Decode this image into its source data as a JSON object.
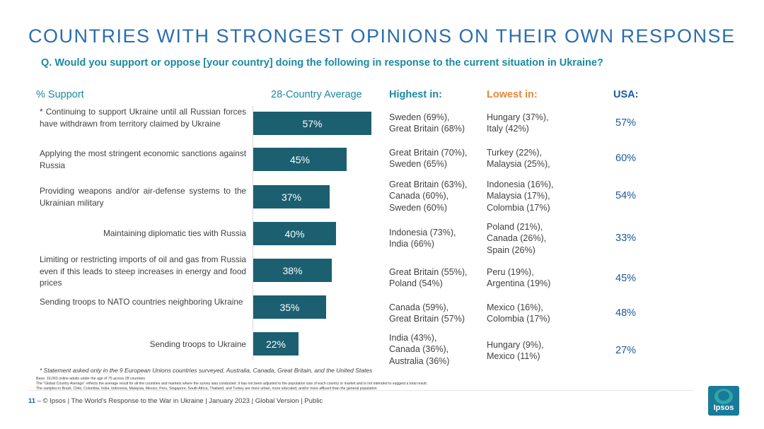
{
  "header": {
    "title": "COUNTRIES WITH STRONGEST OPINIONS ON THEIR OWN RESPONSE",
    "question": "Q. Would you support or oppose [your country] doing the following in response to the current situation in Ukraine?"
  },
  "columns": {
    "support": "% Support",
    "average": "28-Country Average",
    "highest": "Highest in:",
    "lowest": "Lowest in:",
    "usa": "USA:"
  },
  "colors": {
    "bar": "#1b5f70",
    "title": "#2a6db0",
    "teal": "#1a8aa0",
    "orange": "#e8883a",
    "usa": "#1a5aa0"
  },
  "chart_data": {
    "type": "bar",
    "title": "COUNTRIES WITH STRONGEST OPINIONS ON THEIR OWN RESPONSE",
    "xlabel": "28-Country Average",
    "ylabel": "% Support",
    "unit": "%",
    "xlim": [
      0,
      100
    ],
    "categories": [
      "* Continuing to support Ukraine until all Russian forces have withdrawn from territory claimed by Ukraine",
      "Applying the most stringent economic sanctions against Russia",
      "Providing weapons and/or air-defense systems to the Ukrainian military",
      "Maintaining diplomatic ties with Russia",
      "Limiting or restricting imports of oil and gas from Russia even if this leads to steep increases in energy and food prices",
      "Sending troops to NATO countries neighboring Ukraine",
      "Sending troops to Ukraine"
    ],
    "values": [
      57,
      45,
      37,
      40,
      38,
      35,
      22
    ],
    "value_labels": [
      "57%",
      "45%",
      "37%",
      "40%",
      "38%",
      "35%",
      "22%"
    ]
  },
  "rows": [
    {
      "highest": [
        "Sweden (69%),",
        "Great Britain (68%)"
      ],
      "lowest": [
        "Hungary (37%),",
        "Italy (42%)"
      ],
      "usa": "57%"
    },
    {
      "highest": [
        "Great Britain (70%),",
        "Sweden (65%)"
      ],
      "lowest": [
        "Turkey (22%),",
        "Malaysia (25%),"
      ],
      "usa": "60%"
    },
    {
      "highest": [
        "Great Britain (63%),",
        "Canada (60%),",
        "Sweden (60%)"
      ],
      "lowest": [
        "Indonesia (16%),",
        "Malaysia (17%),",
        "Colombia (17%)"
      ],
      "usa": "54%"
    },
    {
      "highest": [
        "Indonesia (73%),",
        "India (66%)"
      ],
      "lowest": [
        "Poland (21%),",
        "Canada (26%),",
        "Spain (26%)"
      ],
      "usa": "33%"
    },
    {
      "highest": [
        "Great Britain (55%),",
        "Poland (54%)"
      ],
      "lowest": [
        "Peru (19%),",
        "Argentina (19%)"
      ],
      "usa": "45%"
    },
    {
      "highest": [
        "Canada (59%),",
        "Great Britain (57%)"
      ],
      "lowest": [
        "Mexico (16%),",
        "Colombia (17%)"
      ],
      "usa": "48%"
    },
    {
      "highest": [
        "India (43%),",
        "Canada (36%),",
        "Australia (36%)"
      ],
      "lowest": [
        "Hungary (9%),",
        "Mexico (11%)"
      ],
      "usa": "27%"
    }
  ],
  "notes": {
    "footnote": "* Statement asked only in the 9 European Unions countries surveyed, Australia, Canada, Great Britain, and the United States",
    "base1": "Base: 19,003 online adults under the age of 75 across 28 countries",
    "base2": "The \"Global Country Average\" reflects the average result for all the countries and markets where the survey was conducted. It has not been adjusted to the population size of each country or market and is not intended to suggest a total result.",
    "base3": "The samples in Brazil, Chile, Colombia, India, Indonesia, Malaysia, Mexico, Peru, Singapore, South Africa, Thailand, and Turkey are more urban, more educated, and/or more affluent than the general population"
  },
  "footer": {
    "page": "11",
    "dash": "–",
    "text": "© Ipsos | The World's Response to the War in Ukraine | January 2023 | Global Version | Public"
  },
  "logo": {
    "text": "Ipsos"
  }
}
